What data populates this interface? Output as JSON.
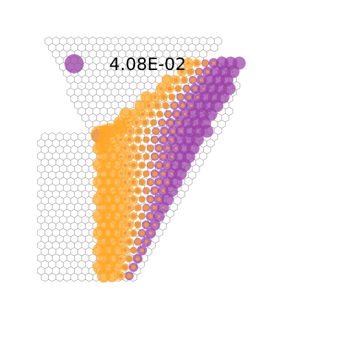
{
  "legend": {
    "value_label": "4.08E-02",
    "marker_color": "#9b3fa6"
  },
  "colors": {
    "purple": "#9b3fa6",
    "orange": "#ffa726",
    "lattice_stroke": "#8a8a8a"
  }
}
